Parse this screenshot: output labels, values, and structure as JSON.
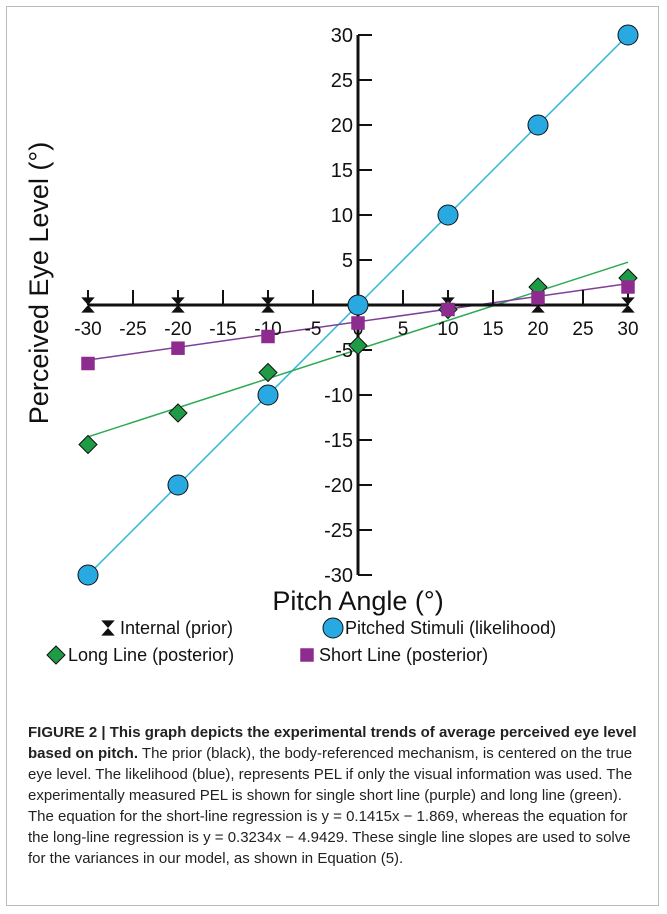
{
  "chart_data": {
    "type": "line",
    "xlabel": "Pitch Angle (°)",
    "ylabel": "Perceived Eye Level (°)",
    "xlim": [
      -30,
      30
    ],
    "ylim": [
      -30,
      30
    ],
    "x_ticks": [
      -30,
      -25,
      -20,
      -15,
      -10,
      -5,
      0,
      5,
      10,
      15,
      20,
      25,
      30
    ],
    "x_tick_labels": [
      "-30",
      "-25",
      "-20",
      "-15",
      "-10",
      "-5",
      "0",
      "5",
      "10",
      "15",
      "20",
      "25",
      "30"
    ],
    "y_ticks": [
      30,
      25,
      20,
      15,
      10,
      5,
      0,
      -5,
      -10,
      -15,
      -20,
      -25,
      -30
    ],
    "y_tick_labels": [
      "30",
      "25",
      "20",
      "15",
      "10",
      "5",
      "0",
      "-5",
      "-10",
      "-15",
      "-20",
      "-25",
      "-30"
    ],
    "grid": false,
    "legend_position": "bottom",
    "series": [
      {
        "name": "Internal (prior)",
        "marker": "hourglass",
        "color": "#111111",
        "points": [
          [
            -30,
            0
          ],
          [
            -20,
            0
          ],
          [
            -10,
            0
          ],
          [
            0,
            0
          ],
          [
            10,
            0
          ],
          [
            20,
            0
          ],
          [
            30,
            0
          ]
        ]
      },
      {
        "name": "Pitched Stimuli (likelihood)",
        "marker": "circle",
        "color": "#29a9e1",
        "line_color": "#29b6dc",
        "points": [
          [
            -30,
            -30
          ],
          [
            -20,
            -20
          ],
          [
            -10,
            -10
          ],
          [
            0,
            0
          ],
          [
            10,
            10
          ],
          [
            20,
            20
          ],
          [
            30,
            30
          ]
        ],
        "fit": {
          "slope": 1.0,
          "intercept": 0.0
        }
      },
      {
        "name": "Long Line (posterior)",
        "marker": "diamond",
        "color": "#1f9a45",
        "line_color": "#2eaa55",
        "points": [
          [
            -30,
            -15.5
          ],
          [
            -20,
            -12
          ],
          [
            -10,
            -7.5
          ],
          [
            0,
            -4.5
          ],
          [
            10,
            -0.5
          ],
          [
            20,
            2
          ],
          [
            30,
            3
          ]
        ],
        "fit": {
          "slope": 0.3234,
          "intercept": -4.9429
        }
      },
      {
        "name": "Short Line (posterior)",
        "marker": "square",
        "color": "#8d2c8e",
        "line_color": "#7f3f98",
        "points": [
          [
            -30,
            -6.5
          ],
          [
            -20,
            -4.8
          ],
          [
            -10,
            -3.5
          ],
          [
            0,
            -2
          ],
          [
            10,
            -0.5
          ],
          [
            20,
            0.8
          ],
          [
            30,
            2
          ]
        ],
        "fit": {
          "slope": 0.1415,
          "intercept": -1.869
        }
      }
    ]
  },
  "caption": {
    "title": "FIGURE 2 | This graph depicts the experimental trends of average perceived eye level based on pitch.",
    "body": " The prior (black), the body-referenced mechanism, is centered on the true eye level. The likelihood (blue), represents PEL if only the visual information was used. The experimentally measured PEL is shown for single short line (purple) and long line (green). The equation for the short-line regression is y = 0.1415x − 1.869, whereas the equation for the long-line regression is y = 0.3234x − 4.9429. These single line slopes are used to solve for the variances in our model, as shown in Equation (5)."
  }
}
